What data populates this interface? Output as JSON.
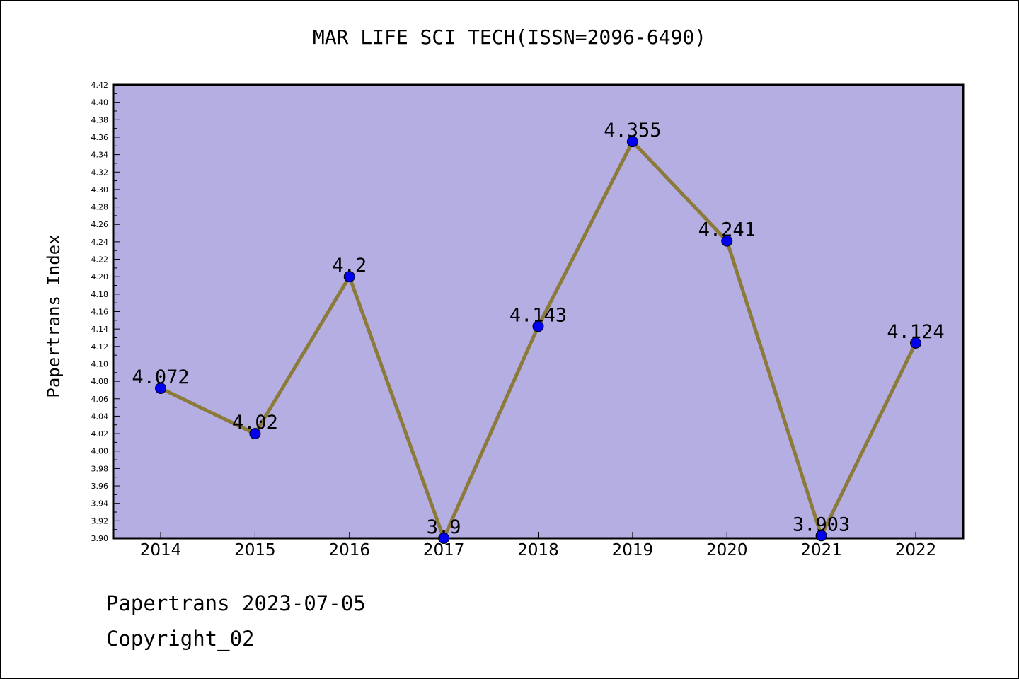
{
  "chart_data": {
    "type": "line",
    "title": "MAR LIFE SCI TECH(ISSN=2096-6490)",
    "xlabel": "",
    "ylabel": "Papertrans Index",
    "categories": [
      "2014",
      "2015",
      "2016",
      "2017",
      "2018",
      "2019",
      "2020",
      "2021",
      "2022"
    ],
    "series": [
      {
        "values": [
          4.072,
          4.02,
          4.2,
          3.9,
          4.143,
          4.355,
          4.241,
          3.903,
          4.124
        ],
        "labels": [
          "4.072",
          "4.02",
          "4.2",
          "3.9",
          "4.143",
          "4.355",
          "4.241",
          "3.903",
          "4.124"
        ]
      }
    ],
    "ylim": [
      3.9,
      4.42
    ],
    "yticks": [
      "3.90",
      "3.92",
      "3.94",
      "3.96",
      "3.98",
      "4.00",
      "4.02",
      "4.04",
      "4.06",
      "4.08",
      "4.10",
      "4.12",
      "4.14",
      "4.16",
      "4.18",
      "4.20",
      "4.22",
      "4.24",
      "4.26",
      "4.28",
      "4.30",
      "4.32",
      "4.34",
      "4.36",
      "4.38",
      "4.40",
      "4.42"
    ],
    "grid": false,
    "legend": "none",
    "colors": {
      "plot_background": "#b4aee3",
      "line": "#8b7a3a",
      "marker": "#0000ee",
      "axis": "#000000"
    }
  },
  "footer": {
    "line1": "Papertrans 2023-07-05",
    "line2": "Copyright_02"
  }
}
